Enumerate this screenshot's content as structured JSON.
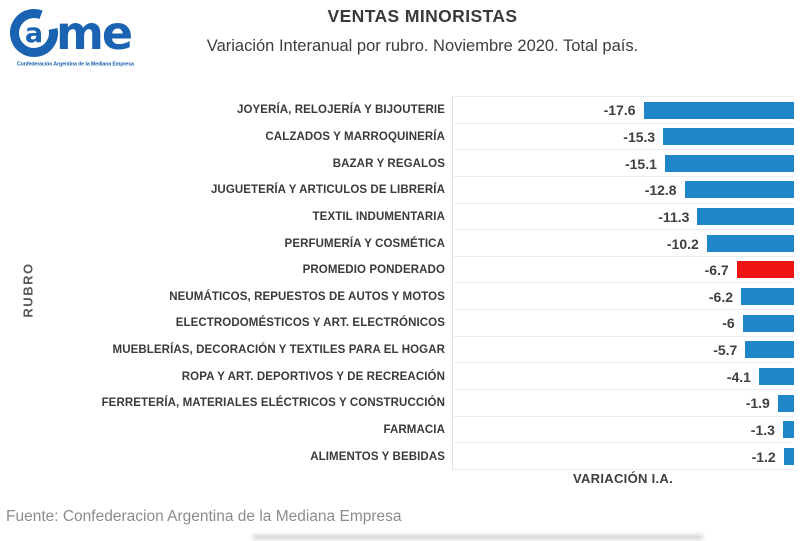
{
  "logo": {
    "letter_a": "a",
    "letters_me": "me",
    "tagline": "Confederación Argentina de la Mediana Empresa",
    "color": "#1A63B2"
  },
  "chart_data": {
    "type": "bar",
    "orientation": "horizontal",
    "title": "VENTAS MINORISTAS",
    "subtitle": "Variación Interanual por rubro. Noviembre 2020. Total país.",
    "xlabel": "VARIACIÓN I.A.",
    "ylabel": "RUBRO",
    "xlim": [
      -40,
      0
    ],
    "grid": true,
    "legend": "none",
    "bar_color": "#1F86C9",
    "highlight_color": "#EE1414",
    "highlight_index": 6,
    "categories": [
      "JOYERÍA, RELOJERÍA Y BIJOUTERIE",
      "CALZADOS Y MARROQUINERÍA",
      "BAZAR Y REGALOS",
      "JUGUETERÍA Y ARTICULOS DE LIBRERÍA",
      "TEXTIL INDUMENTARIA",
      "PERFUMERÍA Y COSMÉTICA",
      "PROMEDIO PONDERADO",
      "NEUMÁTICOS, REPUESTOS DE AUTOS Y MOTOS",
      "ELECTRODOMÉSTICOS Y ART. ELECTRÓNICOS",
      "MUEBLERÍAS, DECORACIÓN Y TEXTILES PARA EL HOGAR",
      "ROPA Y ART. DEPORTIVOS Y DE RECREACIÓN",
      "FERRETERÍA, MATERIALES ELÉCTRICOS Y CONSTRUCCIÓN",
      "FARMACIA",
      "ALIMENTOS Y BEBIDAS"
    ],
    "values": [
      -17.6,
      -15.3,
      -15.1,
      -12.8,
      -11.3,
      -10.2,
      -6.7,
      -6.2,
      -6,
      -5.7,
      -4.1,
      -1.9,
      -1.3,
      -1.2
    ],
    "value_labels": [
      "-17.6",
      "-15.3",
      "-15.1",
      "-12.8",
      "-11.3",
      "-10.2",
      "-6.7",
      "-6.2",
      "-6",
      "-5.7",
      "-4.1",
      "-1.9",
      "-1.3",
      "-1.2"
    ]
  },
  "footer": {
    "source": "Fuente: Confederacion Argentina de la Mediana Empresa"
  }
}
